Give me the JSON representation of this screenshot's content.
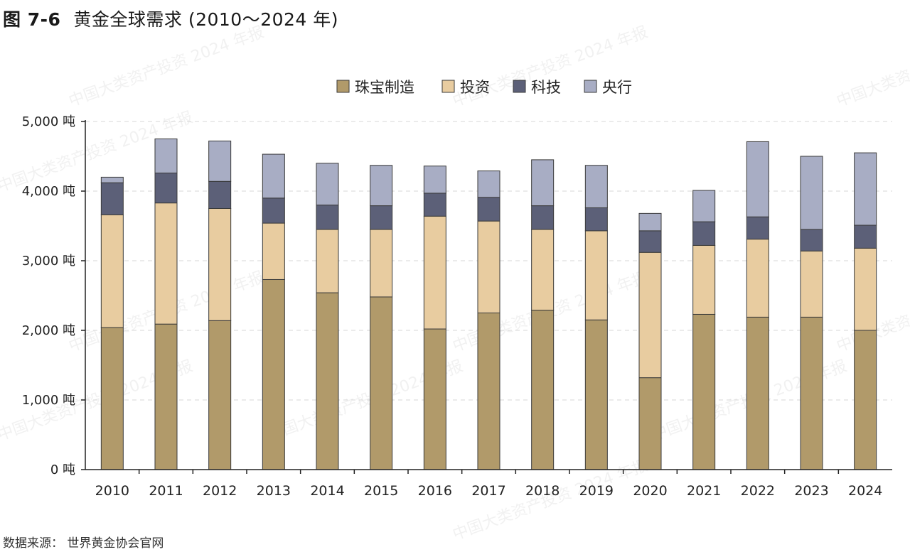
{
  "title": {
    "number": "图 7-6",
    "text": "黄金全球需求 (2010～2024 年)"
  },
  "source": "数据来源：  世界黄金协会官网",
  "watermark": "中国大类资产投资 2024 年报",
  "colors": {
    "jewelry": "#b19a6a",
    "investment": "#e8cca0",
    "tech": "#5c6078",
    "central_bank": "#a8adc4",
    "grid": "#d7d7d7",
    "axis": "#222222"
  },
  "chart_data": {
    "type": "bar",
    "stacked": true,
    "categories": [
      "2010",
      "2011",
      "2012",
      "2013",
      "2014",
      "2015",
      "2016",
      "2017",
      "2018",
      "2019",
      "2020",
      "2021",
      "2022",
      "2023",
      "2024"
    ],
    "series": [
      {
        "name": "珠宝制造",
        "color_key": "jewelry",
        "values": [
          2040,
          2090,
          2140,
          2730,
          2540,
          2480,
          2020,
          2250,
          2290,
          2150,
          1320,
          2230,
          2190,
          2190,
          2000
        ]
      },
      {
        "name": "投资",
        "color_key": "investment",
        "values": [
          1620,
          1740,
          1610,
          810,
          910,
          970,
          1620,
          1320,
          1160,
          1280,
          1800,
          990,
          1120,
          950,
          1180
        ]
      },
      {
        "name": "科技",
        "color_key": "tech",
        "values": [
          460,
          430,
          390,
          360,
          350,
          340,
          330,
          340,
          340,
          330,
          310,
          340,
          320,
          310,
          330
        ]
      },
      {
        "name": "央行",
        "color_key": "central_bank",
        "values": [
          80,
          490,
          580,
          630,
          600,
          580,
          390,
          380,
          660,
          610,
          250,
          450,
          1080,
          1050,
          1040
        ]
      }
    ],
    "ylim": [
      0,
      5000
    ],
    "yticks": [
      0,
      1000,
      2000,
      3000,
      4000,
      5000
    ],
    "ytick_labels": [
      "0 吨",
      "1,000 吨",
      "2,000 吨",
      "3,000 吨",
      "4,000 吨",
      "5,000 吨"
    ],
    "grid": true,
    "legend_position": "top-center",
    "xlabel": "",
    "ylabel": ""
  }
}
